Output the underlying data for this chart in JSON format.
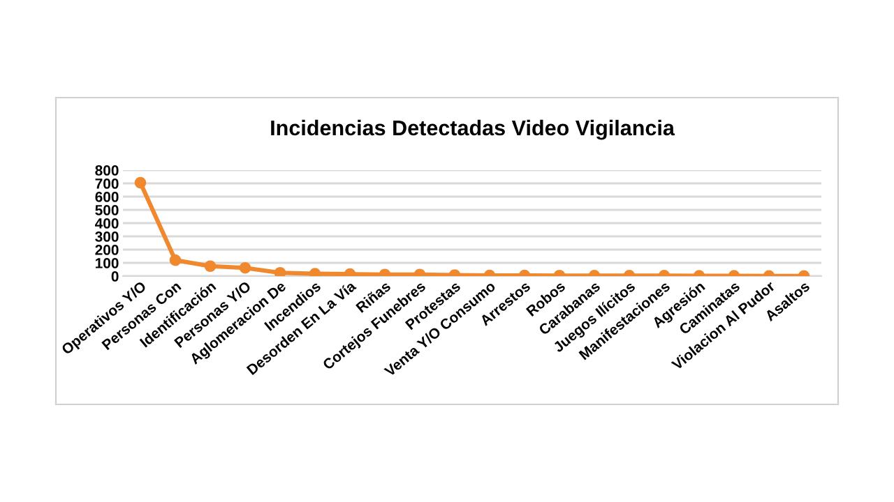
{
  "chart_data": {
    "type": "line",
    "title": "Incidencias Detectadas Video Vigilancia",
    "categories": [
      "Operativos Y/O",
      "Personas Con",
      "Identificación",
      "Personas Y/O",
      "Aglomeracion De",
      "Incendios",
      "Desorden En La Vía",
      "Riñas",
      "Cortejos Funebres",
      "Protestas",
      "Venta Y/O Consumo",
      "Arrestos",
      "Robos",
      "Carabanas",
      "Juegos Ilícitos",
      "Manifestaciones",
      "Agresión",
      "Caminatas",
      "Violacion Al Pudor",
      "Asaltos"
    ],
    "series": [
      {
        "color": "#f0882e",
        "values": [
          705,
          120,
          75,
          62,
          25,
          18,
          15,
          12,
          12,
          8,
          5,
          5,
          4,
          3,
          3,
          3,
          2,
          2,
          1,
          1
        ]
      }
    ],
    "ylim": [
      0,
      800
    ],
    "yticks": [
      0,
      100,
      200,
      300,
      400,
      500,
      600,
      700,
      800
    ],
    "grid": "y",
    "marker": "circle",
    "line_style": "solid",
    "legend": false
  }
}
